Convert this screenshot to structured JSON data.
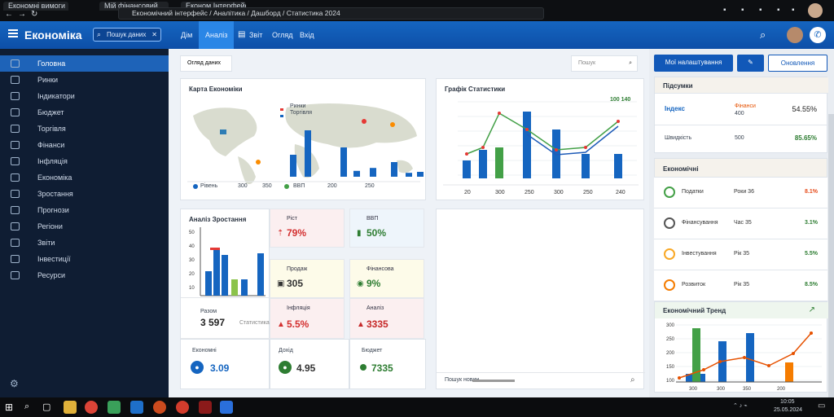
{
  "browser": {
    "tabs": [
      "Економні вимоги",
      "Мій фінансовий",
      "Економ Інтерфейс"
    ],
    "address": "Економічний інтерфейс / Аналітика / Дашборд / Статистика 2024",
    "avatar_icon": "avatar"
  },
  "header": {
    "title": "Економіка",
    "search_placeholder": "Пошук даних",
    "tabs": [
      "Дім",
      "Аналіз",
      "Звіт",
      "Огляд",
      "Вхід"
    ],
    "active_tab": 1
  },
  "sidebar": {
    "items": [
      {
        "label": "Головна",
        "icon": "home-icon",
        "active": true
      },
      {
        "label": "Ринки",
        "icon": "markets-icon"
      },
      {
        "label": "Індикатори",
        "icon": "indicators-icon"
      },
      {
        "label": "Бюджет",
        "icon": "budget-icon"
      },
      {
        "label": "Торгівля",
        "icon": "trade-icon"
      },
      {
        "label": "Фінанси",
        "icon": "finance-icon"
      },
      {
        "label": "Інфляція",
        "icon": "inflation-icon"
      },
      {
        "label": "Економіка",
        "icon": "economy-icon"
      },
      {
        "label": "Зростання",
        "icon": "growth-icon"
      },
      {
        "label": "Прогнози",
        "icon": "forecast-icon"
      },
      {
        "label": "Регіони",
        "icon": "regions-icon"
      },
      {
        "label": "Звіти",
        "icon": "reports-icon"
      },
      {
        "label": "Інвестиції",
        "icon": "invest-icon"
      },
      {
        "label": "Ресурси",
        "icon": "resources-icon"
      }
    ],
    "settings_icon": "gear-icon"
  },
  "main": {
    "filter_label": "Огляд даних",
    "search_label": "Пошук",
    "map_card": {
      "title": "Карта Економіки",
      "legend": [
        "Ринки",
        "Торгівля"
      ],
      "footer": [
        "Рівень",
        "300",
        "350",
        "ВВП",
        "200",
        "250"
      ]
    },
    "bar_line_card": {
      "title": "Графік Статистики",
      "badge": "100 140",
      "xlabels": [
        "20",
        "300",
        "250",
        "300",
        "250",
        "240"
      ]
    },
    "small_chart_card": {
      "title": "Аналіз Зростання",
      "yticks": [
        "50",
        "40",
        "30",
        "20",
        "10"
      ],
      "stat_label": "Разом",
      "stat_value": "3 597",
      "stat_sub": "Статистика"
    },
    "tiles": [
      {
        "label": "Ріст",
        "value": "79%",
        "icon": "up-icon",
        "bg": "#fbeff0",
        "color": "#d32f2f"
      },
      {
        "label": "ВВП",
        "value": "50%",
        "icon": "chart-icon",
        "bg": "#eef5fb",
        "color": "#2e7d32"
      },
      {
        "label": "Продаж",
        "value": "305",
        "icon": "box-icon",
        "bg": "#fdfbe9",
        "color": "#333333"
      },
      {
        "label": "Фінансова",
        "value": "9%",
        "icon": "coin-icon",
        "bg": "#fdfbe9",
        "color": "#2e7d32"
      },
      {
        "label": "Інфляція",
        "value": "5.5%",
        "icon": "warn-icon",
        "bg": "#fbeff0",
        "color": "#d32f2f"
      },
      {
        "label": "Аналіз",
        "value": "3335",
        "icon": "alert-icon",
        "bg": "#fbeff0",
        "color": "#c62828"
      }
    ],
    "bottom_tiles": [
      {
        "label": "Економні",
        "value": "3.09",
        "icon": "drop-icon",
        "color": "#1565c0"
      },
      {
        "label": "Дохід",
        "value": "4.95",
        "icon": "leaf-icon",
        "color": "#2e7d32"
      },
      {
        "label": "Бюджет",
        "value": "7335",
        "icon": "dot-icon",
        "color": "#2e7d32"
      }
    ],
    "bottom_search": "Пошук новин"
  },
  "right": {
    "btn_primary": "Мої налаштування",
    "btn_secondary": "Оновлення",
    "summary": {
      "title": "Підсумки",
      "rows": [
        {
          "label": "Індекс",
          "mid": "Фінанси",
          "mid2": "400",
          "value": "54.55%"
        },
        {
          "label": "Швидкість",
          "mid": "500",
          "value": "85.65%"
        }
      ]
    },
    "list_title": "Економічні",
    "list": [
      {
        "label": "Податки",
        "mid": "Роки 36",
        "value": "8.1%",
        "color": "#e64a19",
        "ring": "#43a047"
      },
      {
        "label": "Фінансування",
        "mid": "Час 35",
        "value": "3.1%",
        "color": "#2e7d32",
        "ring": "#555555"
      },
      {
        "label": "Інвестування",
        "mid": "Рік 35",
        "value": "5.5%",
        "color": "#2e7d32",
        "ring": "#f9a825"
      },
      {
        "label": "Розвиток",
        "mid": "Рік 35",
        "value": "8.5%",
        "color": "#2e7d32",
        "ring": "#f57c00"
      }
    ],
    "trend_title": "Економічний Тренд",
    "trend_yticks": [
      "300",
      "250",
      "200",
      "150",
      "100"
    ],
    "trend_xlabels": [
      "300",
      "300",
      "350",
      "200"
    ]
  },
  "taskbar": {
    "time": "10:05",
    "date": "25.05.2024"
  },
  "chart_data": [
    {
      "type": "bar",
      "name": "map-overlay-bars",
      "values": [
        45,
        95,
        60,
        12,
        18,
        30,
        8,
        10
      ]
    },
    {
      "type": "bar",
      "name": "statistics-bars",
      "values": [
        22,
        35,
        38,
        82,
        60,
        30,
        30
      ],
      "line": [
        30,
        38,
        80,
        60,
        35,
        38,
        70
      ]
    },
    {
      "type": "bar",
      "name": "growth-bars",
      "values": [
        30,
        58,
        50,
        20,
        20,
        52
      ],
      "yticks": [
        "50",
        "40",
        "30",
        "20",
        "10"
      ]
    },
    {
      "type": "bar",
      "name": "trend-bars",
      "values": [
        10,
        10,
        66,
        50,
        60,
        24
      ],
      "line": [
        5,
        15,
        25,
        30,
        20,
        35,
        60
      ]
    }
  ]
}
